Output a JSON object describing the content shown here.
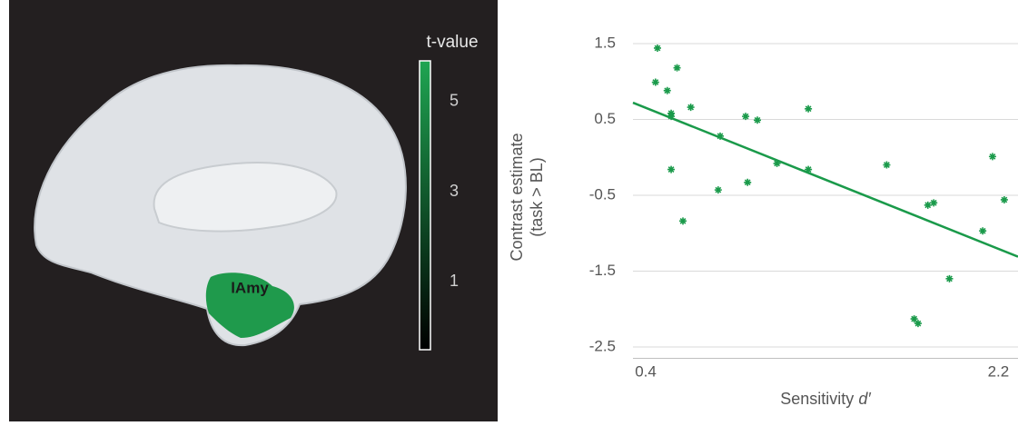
{
  "brain_panel": {
    "colorbar_title": "t-value",
    "colorbar_lim": [
      -0.5,
      5.9
    ],
    "colorbar_ticks": [
      5,
      3,
      1
    ],
    "region_label": "lAmy"
  },
  "chart_data": {
    "type": "scatter",
    "xlabel": "Sensitivity",
    "xlabel_var": "d′",
    "ylabel": [
      "Contrast estimate",
      "(task > BL)"
    ],
    "xlim": [
      0.335,
      2.3
    ],
    "ylim": [
      -2.65,
      1.6
    ],
    "xticks": [
      0.4,
      2.2
    ],
    "yticks": [
      1.5,
      0.5,
      -0.5,
      -1.5,
      -2.5
    ],
    "grid": true,
    "series": [
      {
        "color": "#1a9a4a",
        "x": [
          0.46,
          0.45,
          0.51,
          0.56,
          0.53,
          0.53,
          0.63,
          0.53,
          0.59,
          0.78,
          0.91,
          0.97,
          0.77,
          0.92,
          1.07,
          1.23,
          1.23,
          1.63,
          1.77,
          1.79,
          1.84,
          1.87,
          1.95,
          2.12,
          2.17,
          2.23
        ],
        "values": [
          1.44,
          0.99,
          0.88,
          1.18,
          0.58,
          0.54,
          0.66,
          -0.16,
          -0.84,
          0.28,
          0.54,
          0.49,
          -0.43,
          -0.33,
          -0.08,
          0.64,
          -0.16,
          -0.1,
          -2.13,
          -2.19,
          -0.63,
          -0.6,
          -1.6,
          -0.97,
          0.01,
          -0.56
        ]
      }
    ],
    "fit_line": {
      "color": "#1a9a4a",
      "x": [
        0.335,
        2.3
      ],
      "values": [
        0.72,
        -1.31
      ]
    }
  }
}
